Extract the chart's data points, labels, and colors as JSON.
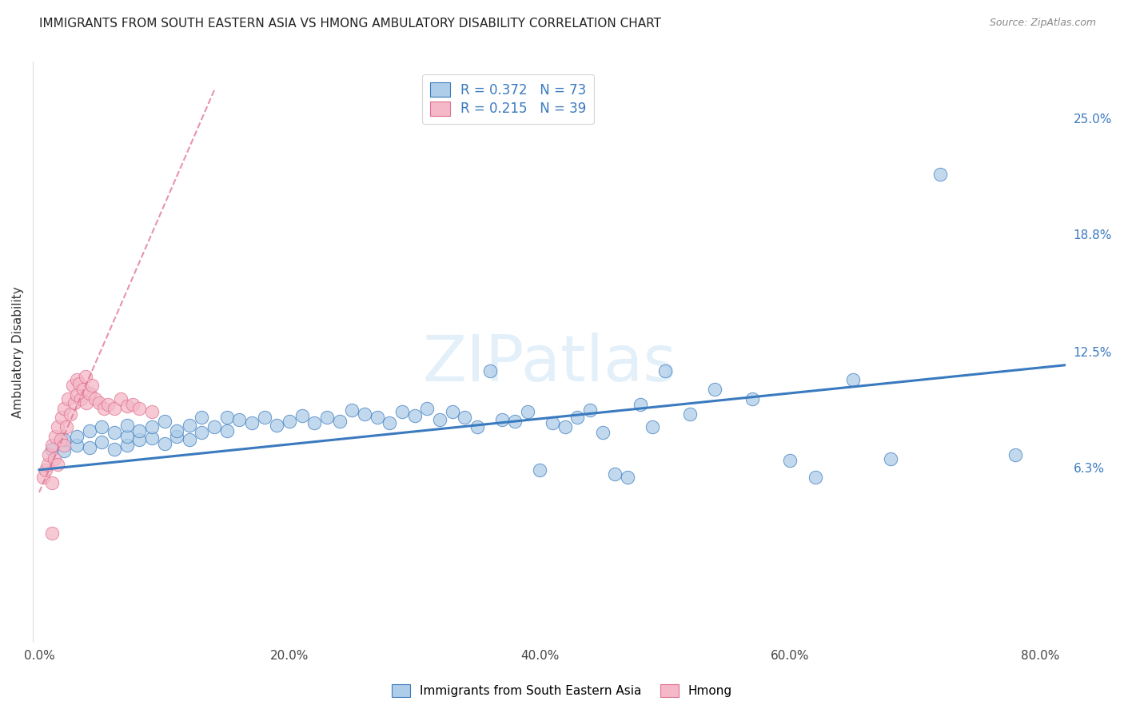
{
  "title": "IMMIGRANTS FROM SOUTH EASTERN ASIA VS HMONG AMBULATORY DISABILITY CORRELATION CHART",
  "source": "Source: ZipAtlas.com",
  "ylabel": "Ambulatory Disability",
  "xlim": [
    -0.005,
    0.82
  ],
  "ylim": [
    -0.03,
    0.28
  ],
  "yticks": [
    0.063,
    0.125,
    0.188,
    0.25
  ],
  "ytick_labels": [
    "6.3%",
    "12.5%",
    "18.8%",
    "25.0%"
  ],
  "xticks": [
    0.0,
    0.2,
    0.4,
    0.6,
    0.8
  ],
  "xtick_labels": [
    "0.0%",
    "20.0%",
    "40.0%",
    "60.0%",
    "80.0%"
  ],
  "legend_entries": [
    {
      "label": "Immigrants from South Eastern Asia",
      "color": "#add8e6",
      "R": "0.372",
      "N": "73"
    },
    {
      "label": "Hmong",
      "color": "#ffb6c1",
      "R": "0.215",
      "N": "39"
    }
  ],
  "blue_scatter_x": [
    0.01,
    0.02,
    0.02,
    0.03,
    0.03,
    0.04,
    0.04,
    0.05,
    0.05,
    0.06,
    0.06,
    0.07,
    0.07,
    0.07,
    0.08,
    0.08,
    0.09,
    0.09,
    0.1,
    0.1,
    0.11,
    0.11,
    0.12,
    0.12,
    0.13,
    0.13,
    0.14,
    0.15,
    0.15,
    0.16,
    0.17,
    0.18,
    0.19,
    0.2,
    0.21,
    0.22,
    0.23,
    0.24,
    0.25,
    0.26,
    0.27,
    0.28,
    0.29,
    0.3,
    0.31,
    0.32,
    0.33,
    0.34,
    0.35,
    0.36,
    0.37,
    0.38,
    0.39,
    0.4,
    0.41,
    0.42,
    0.43,
    0.44,
    0.45,
    0.46,
    0.47,
    0.48,
    0.49,
    0.5,
    0.52,
    0.54,
    0.57,
    0.6,
    0.62,
    0.65,
    0.68,
    0.72,
    0.78
  ],
  "blue_scatter_y": [
    0.073,
    0.072,
    0.078,
    0.075,
    0.08,
    0.074,
    0.083,
    0.077,
    0.085,
    0.073,
    0.082,
    0.075,
    0.08,
    0.086,
    0.078,
    0.083,
    0.079,
    0.085,
    0.076,
    0.088,
    0.08,
    0.083,
    0.078,
    0.086,
    0.082,
    0.09,
    0.085,
    0.083,
    0.09,
    0.089,
    0.087,
    0.09,
    0.086,
    0.088,
    0.091,
    0.087,
    0.09,
    0.088,
    0.094,
    0.092,
    0.09,
    0.087,
    0.093,
    0.091,
    0.095,
    0.089,
    0.093,
    0.09,
    0.085,
    0.115,
    0.089,
    0.088,
    0.093,
    0.062,
    0.087,
    0.085,
    0.09,
    0.094,
    0.082,
    0.06,
    0.058,
    0.097,
    0.085,
    0.115,
    0.092,
    0.105,
    0.1,
    0.067,
    0.058,
    0.11,
    0.068,
    0.22,
    0.07
  ],
  "pink_scatter_x": [
    0.003,
    0.005,
    0.007,
    0.008,
    0.01,
    0.01,
    0.012,
    0.013,
    0.015,
    0.015,
    0.017,
    0.018,
    0.02,
    0.02,
    0.022,
    0.023,
    0.025,
    0.027,
    0.028,
    0.03,
    0.03,
    0.032,
    0.033,
    0.035,
    0.037,
    0.038,
    0.04,
    0.042,
    0.045,
    0.048,
    0.052,
    0.055,
    0.06,
    0.065,
    0.07,
    0.075,
    0.08,
    0.09,
    0.01
  ],
  "pink_scatter_y": [
    0.058,
    0.062,
    0.065,
    0.07,
    0.055,
    0.075,
    0.068,
    0.08,
    0.065,
    0.085,
    0.078,
    0.09,
    0.075,
    0.095,
    0.085,
    0.1,
    0.092,
    0.107,
    0.098,
    0.11,
    0.102,
    0.108,
    0.1,
    0.105,
    0.112,
    0.098,
    0.103,
    0.107,
    0.1,
    0.098,
    0.095,
    0.097,
    0.095,
    0.1,
    0.096,
    0.097,
    0.095,
    0.093,
    0.028
  ],
  "blue_line_x": [
    0.0,
    0.82
  ],
  "blue_line_y": [
    0.062,
    0.118
  ],
  "pink_line_x": [
    0.0,
    0.14
  ],
  "pink_line_y": [
    0.05,
    0.265
  ],
  "blue_color": "#3a7abf",
  "pink_color": "#e07090",
  "blue_fill": "#aecde8",
  "pink_fill": "#f4b8c8",
  "title_fontsize": 11,
  "axis_label_fontsize": 10,
  "tick_fontsize": 10
}
